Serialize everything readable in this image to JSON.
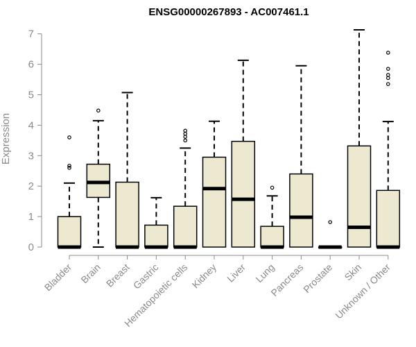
{
  "chart_data": {
    "type": "boxplot",
    "title": "ENSG00000267893 - AC007461.1",
    "ylabel": "Expression",
    "xlabel": "",
    "ylim": [
      0,
      7
    ],
    "yticks": [
      "0",
      "1",
      "2",
      "3",
      "4",
      "5",
      "6",
      "7"
    ],
    "box_fill": "#ede8d0",
    "box_stroke": "#000000",
    "categories": [
      "Bladder",
      "Brain",
      "Breast",
      "Gastric",
      "Hematopoietic cells",
      "Kidney",
      "Liver",
      "Lung",
      "Pancreas",
      "Prostate",
      "Skin",
      "Unknown / Other"
    ],
    "boxes": [
      {
        "category": "Bladder",
        "q1": 0,
        "median": 0,
        "q3": 1.0,
        "whisker_low": 0,
        "whisker_high": 2.1,
        "outliers": [
          2.6,
          2.67,
          3.6
        ]
      },
      {
        "category": "Brain",
        "q1": 1.63,
        "median": 2.12,
        "q3": 2.72,
        "whisker_low": 0,
        "whisker_high": 4.15,
        "outliers": [
          4.48
        ]
      },
      {
        "category": "Breast",
        "q1": 0,
        "median": 0,
        "q3": 2.13,
        "whisker_low": 0,
        "whisker_high": 5.07,
        "outliers": []
      },
      {
        "category": "Gastric",
        "q1": 0,
        "median": 0,
        "q3": 0.72,
        "whisker_low": 0,
        "whisker_high": 1.62,
        "outliers": []
      },
      {
        "category": "Hematopoietic cells",
        "q1": 0,
        "median": 0,
        "q3": 1.34,
        "whisker_low": 0,
        "whisker_high": 3.25,
        "outliers": [
          3.5,
          3.62,
          3.72,
          3.82
        ]
      },
      {
        "category": "Kidney",
        "q1": 0,
        "median": 1.92,
        "q3": 2.95,
        "whisker_low": 0,
        "whisker_high": 4.13,
        "outliers": []
      },
      {
        "category": "Liver",
        "q1": 0,
        "median": 1.57,
        "q3": 3.47,
        "whisker_low": 0,
        "whisker_high": 6.13,
        "outliers": []
      },
      {
        "category": "Lung",
        "q1": 0,
        "median": 0,
        "q3": 0.68,
        "whisker_low": 0,
        "whisker_high": 1.68,
        "outliers": [
          1.95
        ]
      },
      {
        "category": "Pancreas",
        "q1": 0,
        "median": 0.98,
        "q3": 2.4,
        "whisker_low": 0,
        "whisker_high": 5.95,
        "outliers": []
      },
      {
        "category": "Prostate",
        "q1": 0,
        "median": 0,
        "q3": 0,
        "whisker_low": 0,
        "whisker_high": 0,
        "outliers": [
          0.82
        ]
      },
      {
        "category": "Skin",
        "q1": 0,
        "median": 0.65,
        "q3": 3.32,
        "whisker_low": 0,
        "whisker_high": 7.13,
        "outliers": []
      },
      {
        "category": "Unknown / Other",
        "q1": 0,
        "median": 0,
        "q3": 1.86,
        "whisker_low": 0,
        "whisker_high": 4.12,
        "outliers": [
          5.35,
          5.55,
          5.65,
          5.85,
          6.38
        ]
      }
    ]
  }
}
